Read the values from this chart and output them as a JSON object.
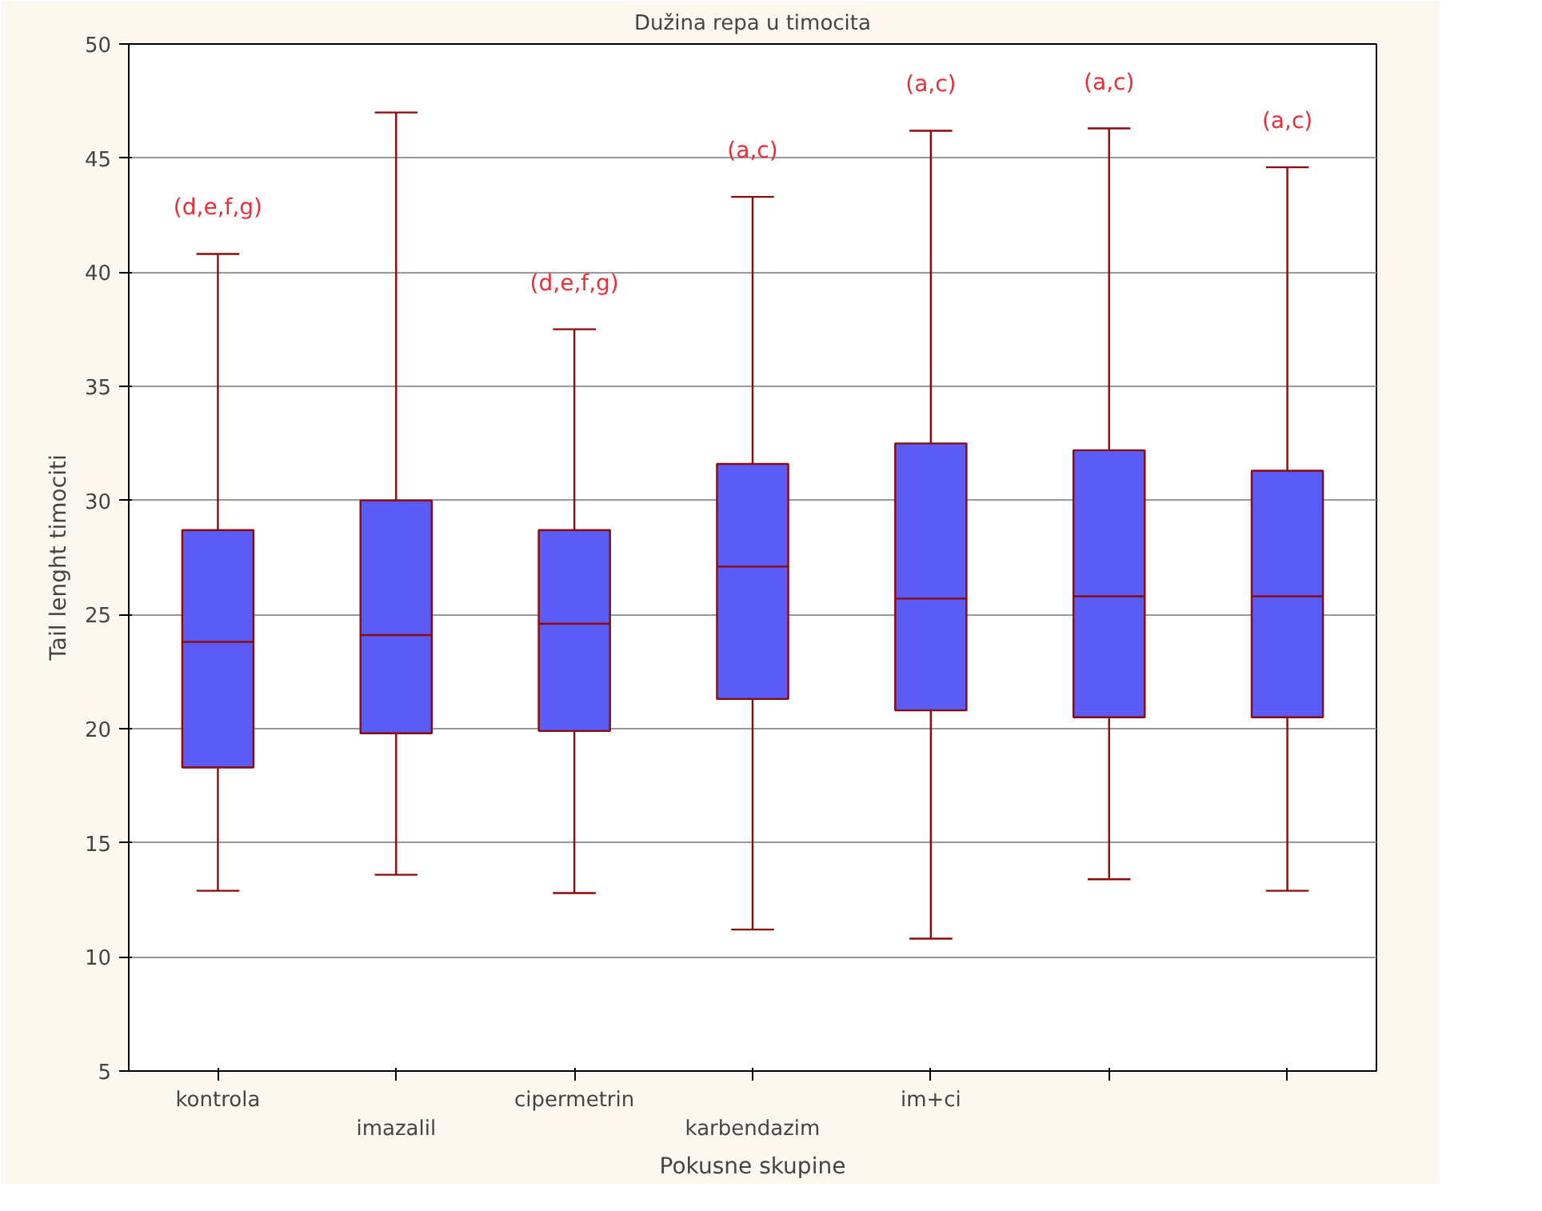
{
  "chart_data": {
    "type": "box",
    "title": "Dužina repa u timocita",
    "xlabel": "Pokusne skupine",
    "ylabel": "Tail lenght timociti",
    "categories": [
      "kontrola",
      "imazalil",
      "cipermetrin",
      "karbendazim",
      "im+ci",
      null,
      null
    ],
    "boxes": [
      {
        "low": 12.9,
        "q1": 18.3,
        "median": 23.8,
        "q3": 28.7,
        "high": 40.8
      },
      {
        "low": 13.6,
        "q1": 19.8,
        "median": 24.1,
        "q3": 30.0,
        "high": 47.0
      },
      {
        "low": 12.8,
        "q1": 19.9,
        "median": 24.6,
        "q3": 28.7,
        "high": 37.5
      },
      {
        "low": 11.2,
        "q1": 21.3,
        "median": 27.1,
        "q3": 31.6,
        "high": 43.3
      },
      {
        "low": 10.8,
        "q1": 20.8,
        "median": 25.7,
        "q3": 32.5,
        "high": 46.2
      },
      {
        "low": 13.4,
        "q1": 20.5,
        "median": 25.8,
        "q3": 32.2,
        "high": 46.3
      },
      {
        "low": 12.9,
        "q1": 20.5,
        "median": 25.8,
        "q3": 31.3,
        "high": 44.6
      }
    ],
    "color": "#5b5bf5",
    "ylim": [
      5,
      50
    ],
    "yticks": [
      5,
      10,
      15,
      20,
      25,
      30,
      35,
      40,
      45,
      50
    ],
    "grid": "y",
    "annotations": [
      "(d,e,f,g)",
      "(d,e,f,g)",
      "(a,c)",
      "(a,c)",
      "(a,c)",
      "(a,c)"
    ]
  }
}
